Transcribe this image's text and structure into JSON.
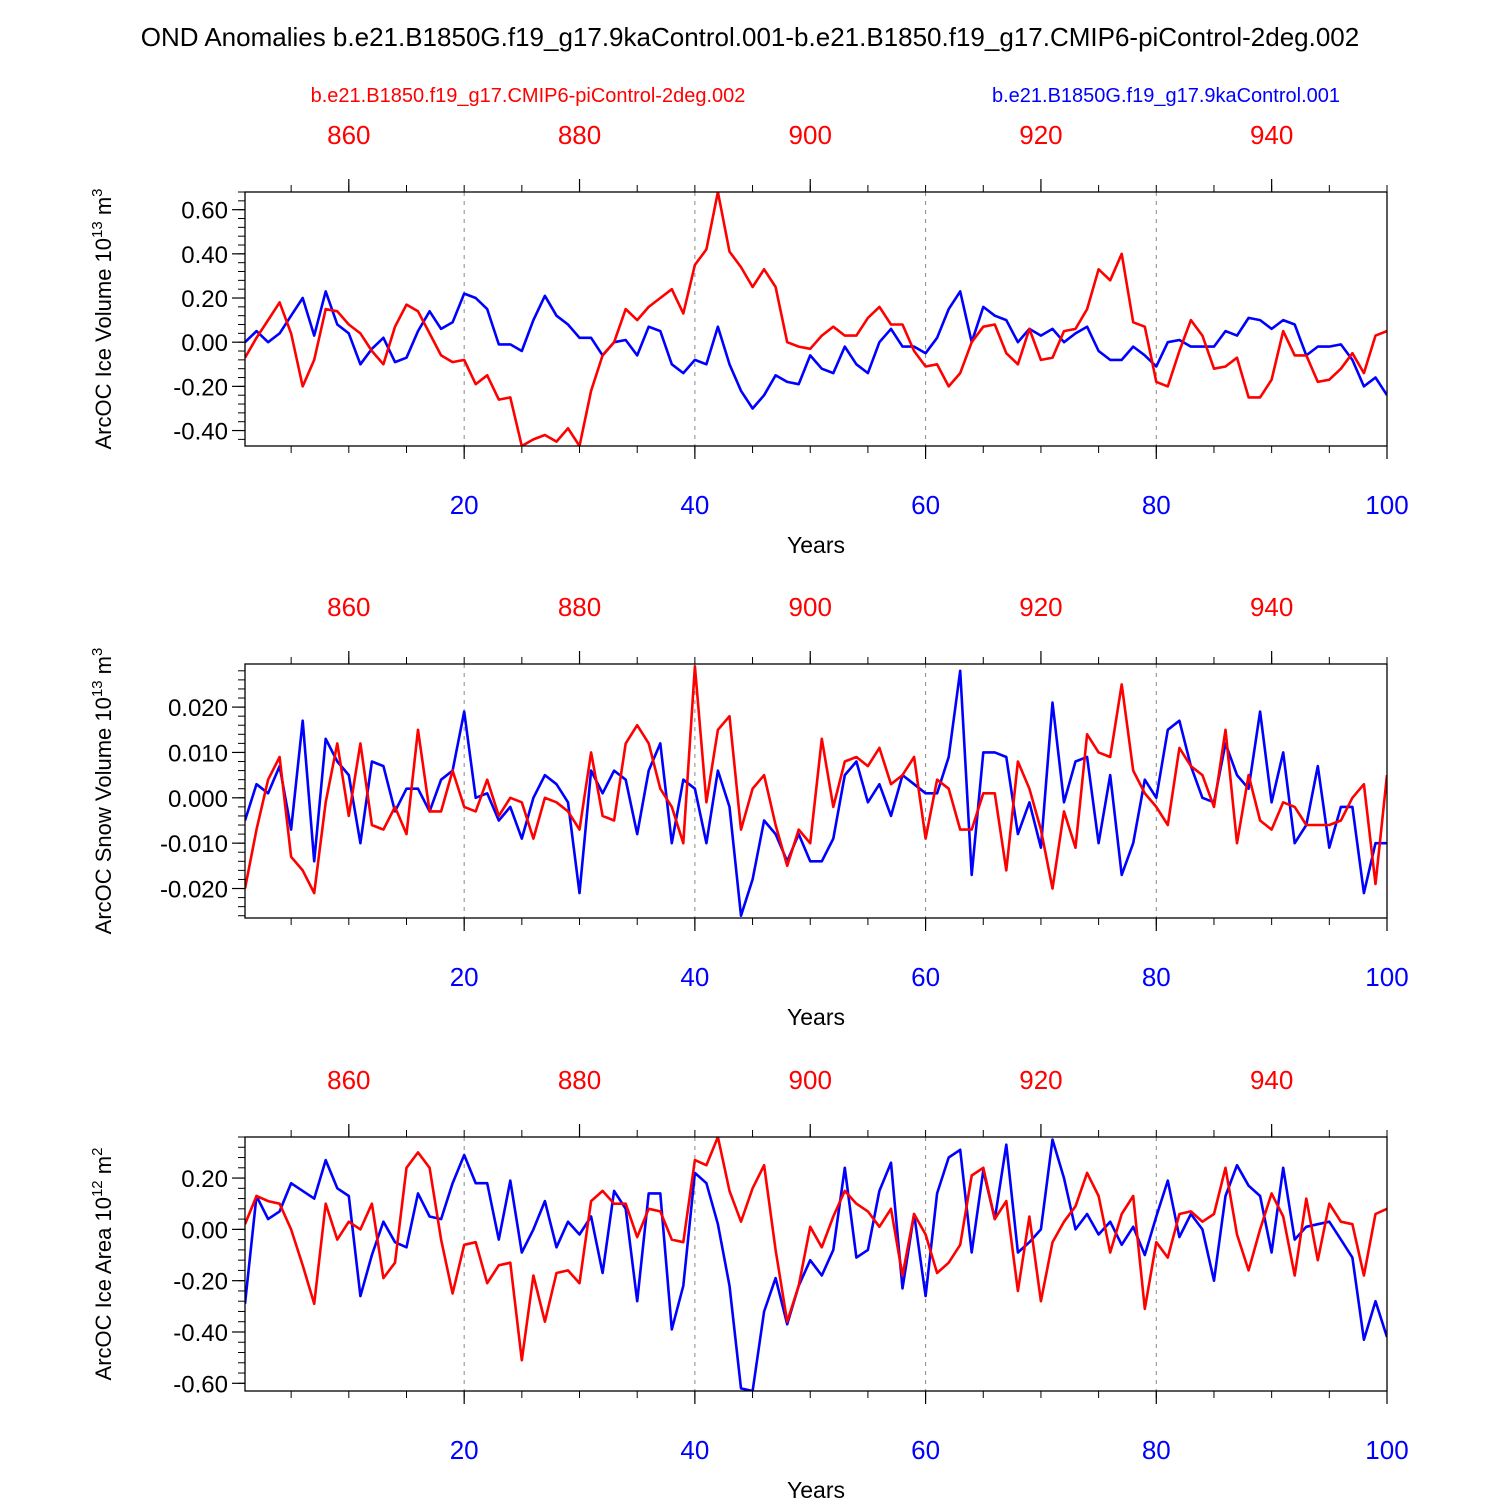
{
  "title": "OND Anomalies b.e21.B1850G.f19_g17.9kaControl.001-b.e21.B1850.f19_g17.CMIP6-piControl-2deg.002",
  "legend": {
    "red_label": "b.e21.B1850.f19_g17.CMIP6-piControl-2deg.002",
    "blue_label": "b.e21.B1850G.f19_g17.9kaControl.001"
  },
  "colors": {
    "red": "#ff0000",
    "blue": "#0000ff",
    "axis": "#000000",
    "grid": "#888888"
  },
  "chart_data": [
    {
      "type": "line",
      "ylabel": "ArcOC Ice Volume 10",
      "ylabel_exp": "13",
      "ylabel_unit": " m",
      "ylabel_unit_exp": "3",
      "xlabel": "Years",
      "xlim": [
        1,
        100
      ],
      "ylim": [
        -0.47,
        0.68
      ],
      "yticks": [
        -0.4,
        -0.2,
        0.0,
        0.2,
        0.4,
        0.6
      ],
      "ytick_labels": [
        "-0.40",
        "-0.20",
        "0.00",
        "0.20",
        "0.40",
        "0.60"
      ],
      "yminor_step": 0.04,
      "xticks_bottom": [
        20,
        40,
        60,
        80,
        100
      ],
      "xtick_labels_bottom": [
        "20",
        "40",
        "60",
        "80",
        "100"
      ],
      "xticks_top": [
        860,
        880,
        900,
        920,
        940
      ],
      "xtick_labels_top": [
        "860",
        "880",
        "900",
        "920",
        "940"
      ],
      "top_axis_offset": 850,
      "grid_x": [
        20,
        40,
        60,
        80
      ],
      "series": [
        {
          "name": "b.e21.B1850G.f19_g17.9kaControl.001",
          "color": "blue",
          "values": [
            0.0,
            0.05,
            0.0,
            0.04,
            0.12,
            0.2,
            0.03,
            0.23,
            0.08,
            0.04,
            -0.1,
            -0.03,
            0.02,
            -0.09,
            -0.07,
            0.05,
            0.14,
            0.06,
            0.09,
            0.22,
            0.2,
            0.15,
            -0.01,
            -0.01,
            -0.04,
            0.1,
            0.21,
            0.12,
            0.08,
            0.02,
            0.02,
            -0.06,
            0.0,
            0.01,
            -0.06,
            0.07,
            0.05,
            -0.1,
            -0.14,
            -0.08,
            -0.1,
            0.07,
            -0.1,
            -0.22,
            -0.3,
            -0.24,
            -0.15,
            -0.18,
            -0.19,
            -0.06,
            -0.12,
            -0.14,
            -0.02,
            -0.1,
            -0.14,
            0.0,
            0.06,
            -0.02,
            -0.02,
            -0.05,
            0.02,
            0.15,
            0.23,
            0.0,
            0.16,
            0.12,
            0.1,
            0.0,
            0.06,
            0.03,
            0.06,
            0.0,
            0.04,
            0.07,
            -0.04,
            -0.08,
            -0.08,
            -0.02,
            -0.06,
            -0.11,
            0.0,
            0.01,
            -0.02,
            -0.02,
            -0.02,
            0.05,
            0.03,
            0.11,
            0.1,
            0.06,
            0.1,
            0.08,
            -0.06,
            -0.02,
            -0.02,
            -0.01,
            -0.08,
            -0.2,
            -0.16,
            -0.24
          ]
        },
        {
          "name": "b.e21.B1850.f19_g17.CMIP6-piControl-2deg.002",
          "color": "red",
          "values": [
            -0.07,
            0.02,
            0.1,
            0.18,
            0.04,
            -0.2,
            -0.08,
            0.15,
            0.14,
            0.08,
            0.04,
            -0.04,
            -0.1,
            0.07,
            0.17,
            0.14,
            0.04,
            -0.06,
            -0.09,
            -0.08,
            -0.19,
            -0.15,
            -0.26,
            -0.25,
            -0.47,
            -0.44,
            -0.42,
            -0.45,
            -0.39,
            -0.47,
            -0.22,
            -0.06,
            0.0,
            0.15,
            0.1,
            0.16,
            0.2,
            0.24,
            0.13,
            0.35,
            0.42,
            0.68,
            0.41,
            0.34,
            0.25,
            0.33,
            0.25,
            0.0,
            -0.02,
            -0.03,
            0.03,
            0.07,
            0.03,
            0.03,
            0.11,
            0.16,
            0.08,
            0.08,
            -0.04,
            -0.11,
            -0.1,
            -0.2,
            -0.14,
            0.0,
            0.07,
            0.08,
            -0.05,
            -0.1,
            0.06,
            -0.08,
            -0.07,
            0.05,
            0.06,
            0.15,
            0.33,
            0.28,
            0.4,
            0.09,
            0.07,
            -0.18,
            -0.2,
            -0.04,
            0.1,
            0.03,
            -0.12,
            -0.11,
            -0.07,
            -0.25,
            -0.25,
            -0.17,
            0.05,
            -0.06,
            -0.06,
            -0.18,
            -0.17,
            -0.12,
            -0.05,
            -0.14,
            0.03,
            0.05
          ]
        }
      ]
    },
    {
      "type": "line",
      "ylabel": "ArcOC Snow Volume 10",
      "ylabel_exp": "13",
      "ylabel_unit": " m",
      "ylabel_unit_exp": "3",
      "xlabel": "Years",
      "xlim": [
        1,
        100
      ],
      "ylim": [
        -0.0265,
        0.0295
      ],
      "yticks": [
        -0.02,
        -0.01,
        0.0,
        0.01,
        0.02
      ],
      "ytick_labels": [
        "-0.020",
        "-0.010",
        "0.000",
        "0.010",
        "0.020"
      ],
      "yminor_step": 0.002,
      "xticks_bottom": [
        20,
        40,
        60,
        80,
        100
      ],
      "xtick_labels_bottom": [
        "20",
        "40",
        "60",
        "80",
        "100"
      ],
      "xticks_top": [
        860,
        880,
        900,
        920,
        940
      ],
      "xtick_labels_top": [
        "860",
        "880",
        "900",
        "920",
        "940"
      ],
      "top_axis_offset": 850,
      "grid_x": [
        20,
        40,
        60,
        80
      ],
      "series": [
        {
          "name": "b.e21.B1850G.f19_g17.9kaControl.001",
          "color": "blue",
          "values": [
            -0.005,
            0.003,
            0.001,
            0.007,
            -0.007,
            0.017,
            -0.014,
            0.013,
            0.008,
            0.005,
            -0.01,
            0.008,
            0.007,
            -0.003,
            0.002,
            0.002,
            -0.003,
            0.004,
            0.006,
            0.019,
            0.0,
            0.001,
            -0.005,
            -0.002,
            -0.009,
            0.0,
            0.005,
            0.003,
            -0.001,
            -0.021,
            0.006,
            0.001,
            0.006,
            0.004,
            -0.008,
            0.006,
            0.012,
            -0.01,
            0.004,
            0.002,
            -0.01,
            0.006,
            -0.002,
            -0.026,
            -0.018,
            -0.005,
            -0.008,
            -0.014,
            -0.008,
            -0.014,
            -0.014,
            -0.009,
            0.005,
            0.008,
            -0.001,
            0.003,
            -0.004,
            0.005,
            0.003,
            0.001,
            0.001,
            0.009,
            0.028,
            -0.017,
            0.01,
            0.01,
            0.009,
            -0.008,
            -0.001,
            -0.011,
            0.021,
            -0.001,
            0.008,
            0.009,
            -0.01,
            0.005,
            -0.017,
            -0.01,
            0.004,
            0.0,
            0.015,
            0.017,
            0.007,
            0.0,
            -0.001,
            0.012,
            0.005,
            0.002,
            0.019,
            -0.001,
            0.01,
            -0.01,
            -0.006,
            0.007,
            -0.011,
            -0.002,
            -0.002,
            -0.021,
            -0.01,
            -0.01
          ]
        },
        {
          "name": "b.e21.B1850.f19_g17.CMIP6-piControl-2deg.002",
          "color": "red",
          "values": [
            -0.02,
            -0.007,
            0.004,
            0.009,
            -0.013,
            -0.016,
            -0.021,
            -0.001,
            0.012,
            -0.004,
            0.012,
            -0.006,
            -0.007,
            -0.002,
            -0.008,
            0.015,
            -0.003,
            -0.003,
            0.006,
            -0.002,
            -0.003,
            0.004,
            -0.004,
            0.0,
            -0.001,
            -0.009,
            0.0,
            -0.001,
            -0.003,
            -0.007,
            0.01,
            -0.004,
            -0.005,
            0.012,
            0.016,
            0.012,
            0.002,
            -0.002,
            -0.01,
            0.029,
            -0.001,
            0.015,
            0.018,
            -0.007,
            0.002,
            0.005,
            -0.006,
            -0.015,
            -0.007,
            -0.01,
            0.013,
            -0.002,
            0.008,
            0.009,
            0.007,
            0.011,
            0.003,
            0.005,
            0.009,
            -0.009,
            0.004,
            0.002,
            -0.007,
            -0.007,
            0.001,
            0.001,
            -0.016,
            0.008,
            0.002,
            -0.007,
            -0.02,
            -0.003,
            -0.011,
            0.014,
            0.01,
            0.009,
            0.025,
            0.006,
            0.001,
            -0.002,
            -0.006,
            0.011,
            0.007,
            0.005,
            -0.002,
            0.015,
            -0.01,
            0.005,
            -0.005,
            -0.007,
            -0.001,
            -0.002,
            -0.006,
            -0.006,
            -0.006,
            -0.005,
            0.0,
            0.003,
            -0.019,
            0.005
          ]
        }
      ]
    },
    {
      "type": "line",
      "ylabel": "ArcOC Ice Area 10",
      "ylabel_exp": "12",
      "ylabel_unit": " m",
      "ylabel_unit_exp": "2",
      "xlabel": "Years",
      "xlim": [
        1,
        100
      ],
      "ylim": [
        -0.63,
        0.36
      ],
      "yticks": [
        -0.6,
        -0.4,
        -0.2,
        0.0,
        0.2
      ],
      "ytick_labels": [
        "-0.60",
        "-0.40",
        "-0.20",
        "0.00",
        "0.20"
      ],
      "yminor_step": 0.04,
      "xticks_bottom": [
        20,
        40,
        60,
        80,
        100
      ],
      "xtick_labels_bottom": [
        "20",
        "40",
        "60",
        "80",
        "100"
      ],
      "xticks_top": [
        860,
        880,
        900,
        920,
        940
      ],
      "xtick_labels_top": [
        "860",
        "880",
        "900",
        "920",
        "940"
      ],
      "top_axis_offset": 850,
      "grid_x": [
        20,
        40,
        60,
        80
      ],
      "series": [
        {
          "name": "b.e21.B1850G.f19_g17.9kaControl.001",
          "color": "blue",
          "values": [
            -0.29,
            0.13,
            0.04,
            0.07,
            0.18,
            0.15,
            0.12,
            0.27,
            0.16,
            0.13,
            -0.26,
            -0.1,
            0.03,
            -0.05,
            -0.07,
            0.14,
            0.05,
            0.04,
            0.18,
            0.29,
            0.18,
            0.18,
            -0.04,
            0.19,
            -0.09,
            0.0,
            0.11,
            -0.07,
            0.03,
            -0.02,
            0.05,
            -0.17,
            0.15,
            0.08,
            -0.28,
            0.14,
            0.14,
            -0.39,
            -0.22,
            0.22,
            0.18,
            0.02,
            -0.22,
            -0.62,
            -0.63,
            -0.32,
            -0.19,
            -0.37,
            -0.22,
            -0.12,
            -0.18,
            -0.08,
            0.24,
            -0.11,
            -0.08,
            0.15,
            0.26,
            -0.23,
            0.06,
            -0.26,
            0.14,
            0.28,
            0.31,
            -0.09,
            0.23,
            0.04,
            0.33,
            -0.09,
            -0.05,
            0.0,
            0.35,
            0.2,
            0.0,
            0.06,
            -0.02,
            0.03,
            -0.06,
            0.01,
            -0.1,
            0.05,
            0.19,
            -0.03,
            0.06,
            0.0,
            -0.2,
            0.13,
            0.25,
            0.17,
            0.13,
            -0.09,
            0.24,
            -0.04,
            0.01,
            0.02,
            0.03,
            -0.04,
            -0.11,
            -0.43,
            -0.28,
            -0.42
          ]
        },
        {
          "name": "b.e21.B1850.f19_g17.CMIP6-piControl-2deg.002",
          "color": "red",
          "values": [
            0.02,
            0.13,
            0.11,
            0.1,
            0.0,
            -0.14,
            -0.29,
            0.1,
            -0.04,
            0.03,
            0.0,
            0.1,
            -0.19,
            -0.13,
            0.24,
            0.3,
            0.24,
            -0.04,
            -0.25,
            -0.06,
            -0.05,
            -0.21,
            -0.14,
            -0.13,
            -0.51,
            -0.18,
            -0.36,
            -0.17,
            -0.16,
            -0.21,
            0.11,
            0.15,
            0.1,
            0.1,
            -0.03,
            0.08,
            0.07,
            -0.04,
            -0.05,
            0.27,
            0.25,
            0.36,
            0.15,
            0.03,
            0.16,
            0.25,
            -0.08,
            -0.36,
            -0.22,
            0.01,
            -0.07,
            0.05,
            0.15,
            0.1,
            0.07,
            0.01,
            0.08,
            -0.18,
            0.06,
            -0.02,
            -0.17,
            -0.13,
            -0.06,
            0.21,
            0.24,
            0.04,
            0.11,
            -0.24,
            0.05,
            -0.28,
            -0.05,
            0.03,
            0.09,
            0.22,
            0.13,
            -0.09,
            0.06,
            0.13,
            -0.31,
            -0.05,
            -0.11,
            0.06,
            0.07,
            0.03,
            0.06,
            0.24,
            -0.02,
            -0.16,
            0.0,
            0.14,
            0.05,
            -0.18,
            0.12,
            -0.12,
            0.1,
            0.03,
            0.02,
            -0.18,
            0.06,
            0.08
          ]
        }
      ]
    }
  ]
}
